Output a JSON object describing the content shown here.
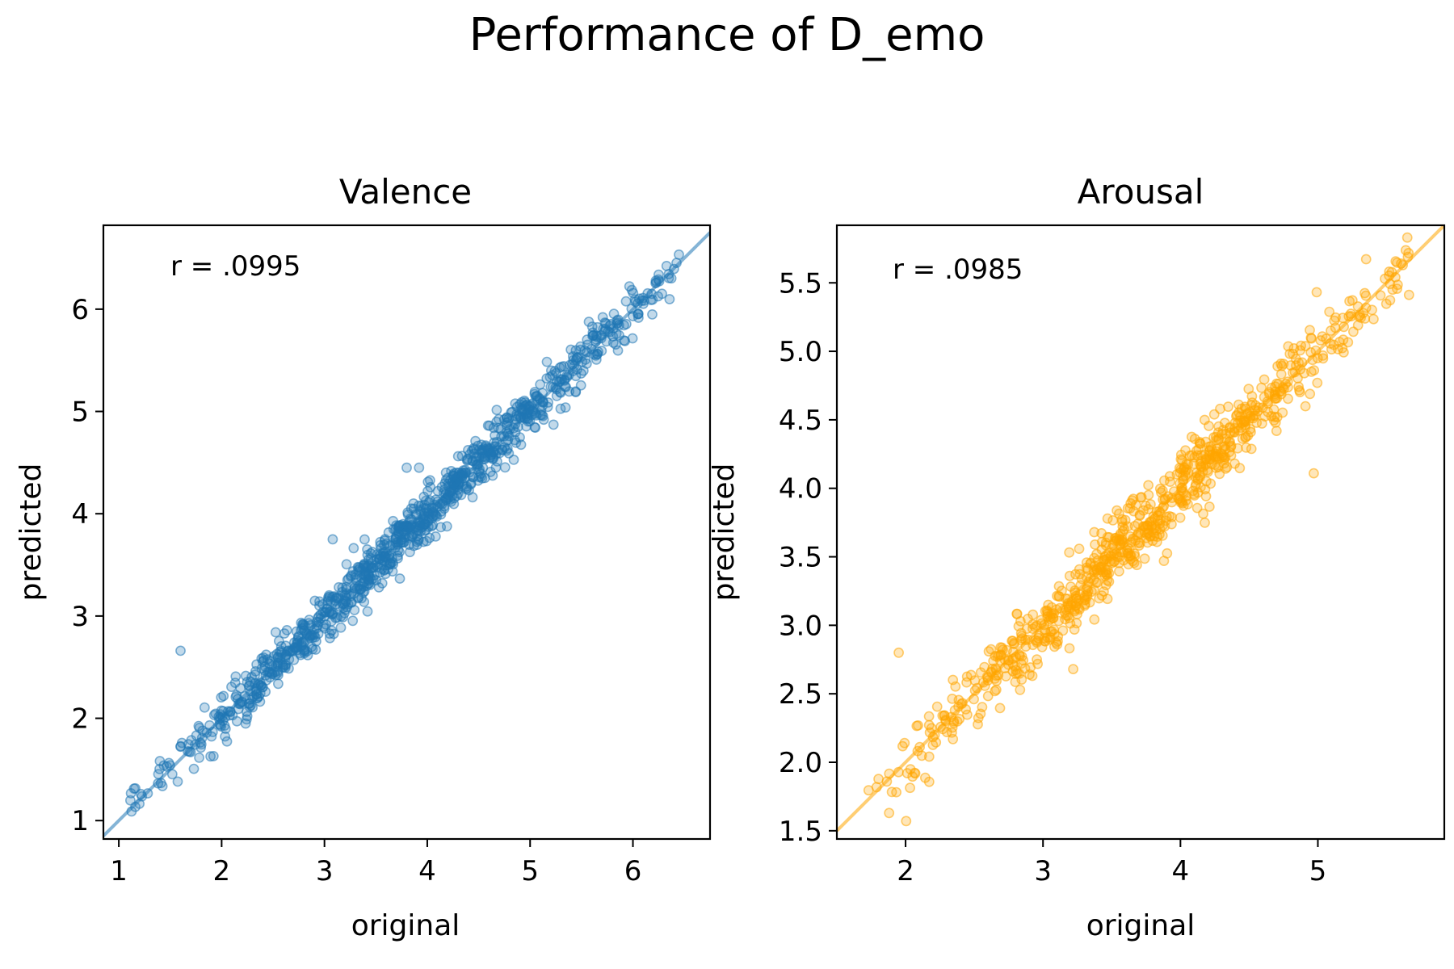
{
  "figure": {
    "suptitle": "Performance of D_emo"
  },
  "chart_data": [
    {
      "type": "scatter",
      "title": "Valence",
      "xlabel": "original",
      "ylabel": "predicted",
      "annotation": "r = .0995",
      "color": "#1f77b4",
      "xlim": [
        0.85,
        6.75
      ],
      "ylim": [
        0.82,
        6.82
      ],
      "xticks": [
        1,
        2,
        3,
        4,
        5,
        6
      ],
      "yticks": [
        1,
        2,
        3,
        4,
        5,
        6
      ],
      "xtick_labels": [
        "1",
        "2",
        "3",
        "4",
        "5",
        "6"
      ],
      "ytick_labels": [
        "1",
        "2",
        "3",
        "4",
        "5",
        "6"
      ],
      "reference_line": "y = x",
      "n_points": 1000,
      "x_range": [
        1.1,
        6.5
      ],
      "noise_sd": 0.12,
      "outliers": [
        {
          "x": 1.6,
          "y": 2.66
        },
        {
          "x": 3.08,
          "y": 3.75
        },
        {
          "x": 3.53,
          "y": 3.28
        },
        {
          "x": 3.8,
          "y": 4.45
        },
        {
          "x": 3.92,
          "y": 4.45
        },
        {
          "x": 4.95,
          "y": 4.93
        }
      ]
    },
    {
      "type": "scatter",
      "title": "Arousal",
      "xlabel": "original",
      "ylabel": "predicted",
      "annotation": "r = .0985",
      "color": "#ffa500",
      "xlim": [
        1.5,
        5.92
      ],
      "ylim": [
        1.44,
        5.92
      ],
      "xticks": [
        2,
        3,
        4,
        5
      ],
      "yticks": [
        1.5,
        2.0,
        2.5,
        3.0,
        3.5,
        4.0,
        4.5,
        5.0,
        5.5
      ],
      "xtick_labels": [
        "2",
        "3",
        "4",
        "5"
      ],
      "ytick_labels": [
        "1.5",
        "2.0",
        "2.5",
        "3.0",
        "3.5",
        "4.0",
        "4.5",
        "5.0",
        "5.5"
      ],
      "reference_line": "y = x",
      "n_points": 800,
      "x_range": [
        1.7,
        5.7
      ],
      "noise_sd": 0.13,
      "outliers": [
        {
          "x": 4.97,
          "y": 4.11
        },
        {
          "x": 3.88,
          "y": 3.47
        },
        {
          "x": 3.22,
          "y": 2.68
        },
        {
          "x": 1.88,
          "y": 1.63
        },
        {
          "x": 1.95,
          "y": 2.8
        }
      ]
    }
  ]
}
